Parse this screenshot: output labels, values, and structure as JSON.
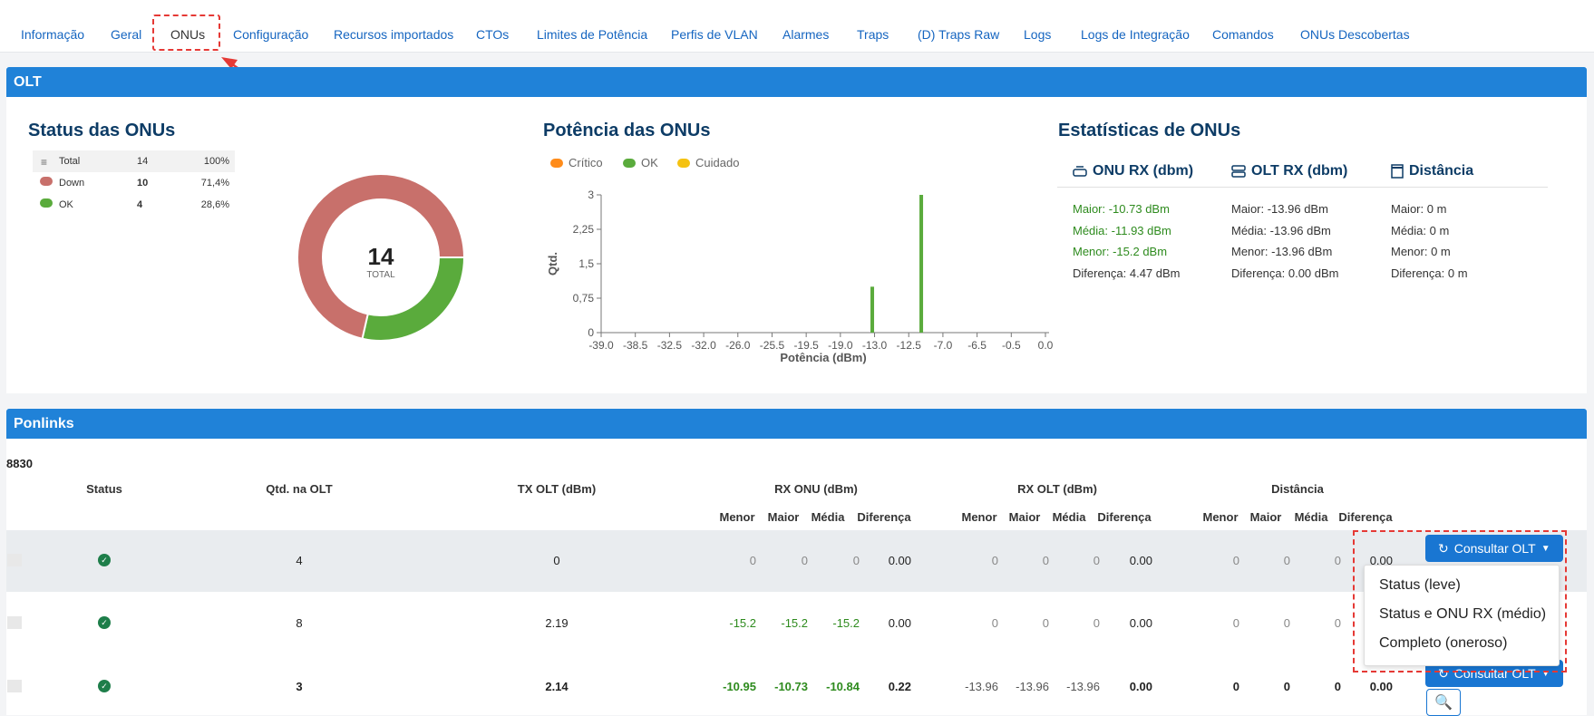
{
  "tabs": [
    {
      "label": "Informação",
      "active": false
    },
    {
      "label": "Geral",
      "active": false
    },
    {
      "label": "ONUs",
      "active": true
    },
    {
      "label": "Configuração",
      "active": false
    },
    {
      "label": "Recursos importados",
      "active": false
    },
    {
      "label": "CTOs",
      "active": false
    },
    {
      "label": "Limites de Potência",
      "active": false
    },
    {
      "label": "Perfis de VLAN",
      "active": false
    },
    {
      "label": "Alarmes",
      "active": false
    },
    {
      "label": "Traps",
      "active": false
    },
    {
      "label": "(D) Traps Raw",
      "active": false
    },
    {
      "label": "Logs",
      "active": false
    },
    {
      "label": "Logs de Integração",
      "active": false
    },
    {
      "label": "Comandos",
      "active": false
    },
    {
      "label": "ONUs Descobertas",
      "active": false
    }
  ],
  "olt_panel": {
    "title": "OLT",
    "status": {
      "title": "Status das ONUs",
      "rows": [
        {
          "label": "Total",
          "count": "14",
          "pct": "100%"
        },
        {
          "label": "Down",
          "count": "10",
          "pct": "71,4%",
          "color": "#c8706b"
        },
        {
          "label": "OK",
          "count": "4",
          "pct": "28,6%",
          "color": "#5aab3c"
        }
      ],
      "donut_total": "14",
      "donut_caption": "TOTAL",
      "donut_values": {
        "down": 10,
        "ok": 4
      }
    },
    "power": {
      "title": "Potência das ONUs",
      "legend": [
        {
          "label": "Crítico",
          "color": "#ff8c1a"
        },
        {
          "label": "OK",
          "color": "#5aab3c"
        },
        {
          "label": "Cuidado",
          "color": "#f5c211"
        }
      ],
      "chart_data": {
        "type": "bar",
        "xlabel": "Potência (dBm)",
        "ylabel": "Qtd.",
        "ylim": [
          0,
          3
        ],
        "yticks": [
          "0",
          "0,75",
          "1,5",
          "2,25",
          "3"
        ],
        "xticks": [
          "-39.0",
          "-38.5",
          "-32.5",
          "-32.0",
          "-26.0",
          "-25.5",
          "-19.5",
          "-19.0",
          "-13.0",
          "-12.5",
          "-7.0",
          "-6.5",
          "-0.5",
          "0.0"
        ],
        "bars": [
          {
            "x": -15.2,
            "value": 1,
            "series": "OK"
          },
          {
            "x": -10.9,
            "value": 3,
            "series": "OK"
          }
        ]
      }
    },
    "stats": {
      "title": "Estatísticas de ONUs",
      "columns": [
        {
          "heading": "ONU RX (dbm)",
          "icon": "router-icon",
          "lines": [
            "Maior: -10.73 dBm",
            "Média: -11.93 dBm",
            "Menor: -15.2 dBm",
            "Diferença: 4.47 dBm"
          ]
        },
        {
          "heading": "OLT RX (dbm)",
          "icon": "server-icon",
          "lines": [
            "Maior: -13.96 dBm",
            "Média: -13.96 dBm",
            "Menor: -13.96 dBm",
            "Diferença: 0.00 dBm"
          ]
        },
        {
          "heading": "Distância",
          "icon": "ruler-icon",
          "lines": [
            "Maior: 0 m",
            "Média: 0 m",
            "Menor: 0 m",
            "Diferença: 0 m"
          ]
        }
      ]
    }
  },
  "ponlinks": {
    "title": "Ponlinks",
    "olt_id": "8830",
    "headers": {
      "status": "Status",
      "qtd": "Qtd. na OLT",
      "tx": "TX OLT (dBm)",
      "rx_onu": "RX ONU (dBm)",
      "rx_olt": "RX OLT (dBm)",
      "dist": "Distância",
      "menor": "Menor",
      "maior": "Maior",
      "media": "Média",
      "dif": "Diferença"
    },
    "rows": [
      {
        "qtd": "4",
        "tx": "0",
        "onu": [
          "0",
          "0",
          "0",
          "0.00"
        ],
        "olt": [
          "0",
          "0",
          "0",
          "0.00"
        ],
        "dist": [
          "0",
          "0",
          "0",
          "0.00"
        ]
      },
      {
        "qtd": "8",
        "tx": "2.19",
        "onu": [
          "-15.2",
          "-15.2",
          "-15.2",
          "0.00"
        ],
        "olt": [
          "0",
          "0",
          "0",
          "0.00"
        ],
        "dist": [
          "0",
          "0",
          "0",
          "0.00"
        ]
      },
      {
        "qtd": "3",
        "tx": "2.14",
        "onu": [
          "-10.95",
          "-10.73",
          "-10.84",
          "0.22"
        ],
        "olt": [
          "-13.96",
          "-13.96",
          "-13.96",
          "0.00"
        ],
        "dist": [
          "0",
          "0",
          "0",
          "0.00"
        ]
      }
    ],
    "consult_button": "Consultar OLT",
    "dropdown": [
      "Status (leve)",
      "Status e ONU RX (médio)",
      "Completo (oneroso)"
    ]
  }
}
